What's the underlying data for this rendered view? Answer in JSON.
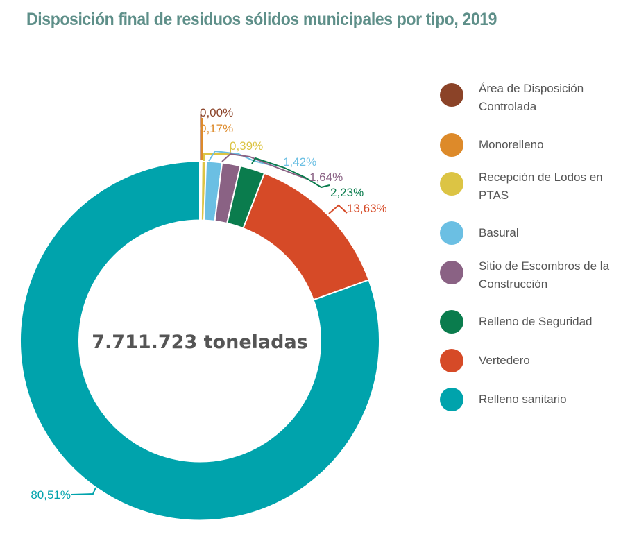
{
  "chart_data": {
    "type": "pie",
    "variant": "donut",
    "title": "Disposición final de residuos sólidos municipales por tipo, 2019",
    "center_label": "7.711.723 toneladas",
    "direction": "clockwise-from-top",
    "legend_position": "right",
    "slices": [
      {
        "name": "Área de Disposición Controlada",
        "value": 0.0,
        "label": "0,00%",
        "color": "#8b4328"
      },
      {
        "name": "Monorelleno",
        "value": 0.17,
        "label": "0,17%",
        "color": "#dd8a2a"
      },
      {
        "name": "Recepción de Lodos en PTAS",
        "value": 0.39,
        "label": "0,39%",
        "color": "#dcc444"
      },
      {
        "name": "Basural",
        "value": 1.42,
        "label": "1,42%",
        "color": "#6bbfe3"
      },
      {
        "name": "Sitio de Escombros de la Construcción",
        "value": 1.64,
        "label": "1,64%",
        "color": "#8a6284"
      },
      {
        "name": "Relleno de Seguridad",
        "value": 2.23,
        "label": "2,23%",
        "color": "#0a7c4d"
      },
      {
        "name": "Vertedero",
        "value": 13.63,
        "label": "13,63%",
        "color": "#d64a27"
      },
      {
        "name": "Relleno sanitario",
        "value": 80.51,
        "label": "80,51%",
        "color": "#00a3ac"
      }
    ]
  },
  "legend": {
    "items": [
      {
        "lines": [
          "Área de Disposición",
          "Controlada"
        ]
      },
      {
        "lines": [
          "Monorelleno"
        ]
      },
      {
        "lines": [
          "Recepción de Lodos en",
          "PTAS"
        ]
      },
      {
        "lines": [
          "Basural"
        ]
      },
      {
        "lines": [
          "Sitio de Escombros de la",
          "Construcción"
        ]
      },
      {
        "lines": [
          "Relleno de Seguridad"
        ]
      },
      {
        "lines": [
          "Vertedero"
        ]
      },
      {
        "lines": [
          "Relleno sanitario"
        ]
      }
    ]
  }
}
